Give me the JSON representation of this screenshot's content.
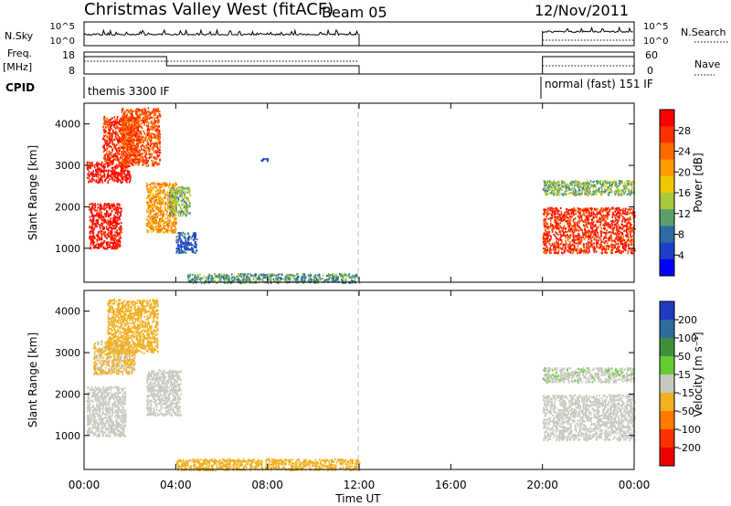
{
  "header": {
    "station": "Christmas Valley West (fitACF)",
    "beam": "Beam 05",
    "date": "12/Nov/2011"
  },
  "panels": {
    "nsky": {
      "label": "N.Sky",
      "ticks_left": [
        "10^5",
        "10^0"
      ],
      "ticks_right": [
        "10^5",
        "10^0"
      ],
      "right_label": "N.Search"
    },
    "freq": {
      "label": "Freq.",
      "unit": "[MHz]",
      "ticks_left": [
        "18",
        "8"
      ],
      "ticks_right": [
        "60",
        "0"
      ],
      "right_label": "Nave"
    },
    "cpid": {
      "label": "CPID",
      "modes": [
        "themis 3300 IF",
        "normal (fast) 151 IF"
      ]
    }
  },
  "colorbars": {
    "power": {
      "label": "Power [dB]",
      "ticks": [
        "28",
        "24",
        "20",
        "16",
        "12",
        "8",
        "4"
      ],
      "colors": [
        "#ff0000",
        "#ff3000",
        "#ff6a00",
        "#ff9d00",
        "#f0c800",
        "#a6c93a",
        "#5a9f6a",
        "#2f6ba8",
        "#1e3fc8",
        "#0000ff"
      ]
    },
    "velocity": {
      "label": "Velocity [m s⁻¹]",
      "ticks": [
        "200",
        "100",
        "50",
        "15",
        "-15",
        "-50",
        "-100",
        "-200"
      ],
      "colors": [
        "#1e3bc4",
        "#2f6c9e",
        "#3f8f3f",
        "#66cc33",
        "#c8c8c0",
        "#f0b020",
        "#ff7a00",
        "#ff3000",
        "#ee0000"
      ]
    }
  },
  "chart_data": [
    {
      "type": "heatmap",
      "name": "power",
      "ylabel": "Slant Range [km]",
      "yticks": [
        "4000",
        "3000",
        "2000",
        "1000"
      ],
      "ylim": [
        180,
        4500
      ],
      "xlim": [
        0,
        24
      ],
      "regions": [
        {
          "x": [
            0.1,
            2.0
          ],
          "y": [
            2600,
            3100
          ],
          "level": 28
        },
        {
          "x": [
            0.2,
            1.6
          ],
          "y": [
            1000,
            2100
          ],
          "level": 28
        },
        {
          "x": [
            0.8,
            2.4
          ],
          "y": [
            3100,
            4200
          ],
          "level": 26
        },
        {
          "x": [
            1.6,
            3.3
          ],
          "y": [
            3000,
            4400
          ],
          "level": 24
        },
        {
          "x": [
            2.7,
            4.0
          ],
          "y": [
            1400,
            2600
          ],
          "level": 20
        },
        {
          "x": [
            3.7,
            4.6
          ],
          "y": [
            1800,
            2500
          ],
          "level": 12
        },
        {
          "x": [
            4.0,
            4.9
          ],
          "y": [
            900,
            1400
          ],
          "level": 6
        },
        {
          "x": [
            7.7,
            8.0
          ],
          "y": [
            3100,
            3200
          ],
          "level": 6
        },
        {
          "x": [
            4.5,
            12.0
          ],
          "y": [
            180,
            400
          ],
          "level": 10
        },
        {
          "x": [
            20.0,
            24.0
          ],
          "y": [
            900,
            2000
          ],
          "level": 26
        },
        {
          "x": [
            20.0,
            24.0
          ],
          "y": [
            2300,
            2650
          ],
          "level": 12
        }
      ]
    },
    {
      "type": "heatmap",
      "name": "velocity",
      "ylabel": "Slant Range [km]",
      "yticks": [
        "4000",
        "3000",
        "2000",
        "1000"
      ],
      "ylim": [
        180,
        4500
      ],
      "xlim": [
        0,
        24
      ],
      "regions": [
        {
          "x": [
            0.1,
            1.8
          ],
          "y": [
            1000,
            2200
          ],
          "level": 0
        },
        {
          "x": [
            0.4,
            2.2
          ],
          "y": [
            2500,
            3300
          ],
          "level": -20
        },
        {
          "x": [
            1.0,
            3.2
          ],
          "y": [
            3000,
            4300
          ],
          "level": -30
        },
        {
          "x": [
            2.7,
            4.2
          ],
          "y": [
            1500,
            2600
          ],
          "level": 0
        },
        {
          "x": [
            4.0,
            12.0
          ],
          "y": [
            180,
            450
          ],
          "level": -30
        },
        {
          "x": [
            20.0,
            24.0
          ],
          "y": [
            900,
            2000
          ],
          "level": 0
        },
        {
          "x": [
            20.0,
            24.0
          ],
          "y": [
            2300,
            2650
          ],
          "level": 5
        }
      ]
    }
  ],
  "time_axis": {
    "label": "Time UT",
    "ticks": [
      "00:00",
      "04:00",
      "08:00",
      "12:00",
      "16:00",
      "20:00",
      "00:00"
    ],
    "tick_hours": [
      0,
      4,
      8,
      12,
      16,
      20,
      24
    ],
    "data_gaps": [
      [
        12,
        20
      ]
    ]
  }
}
